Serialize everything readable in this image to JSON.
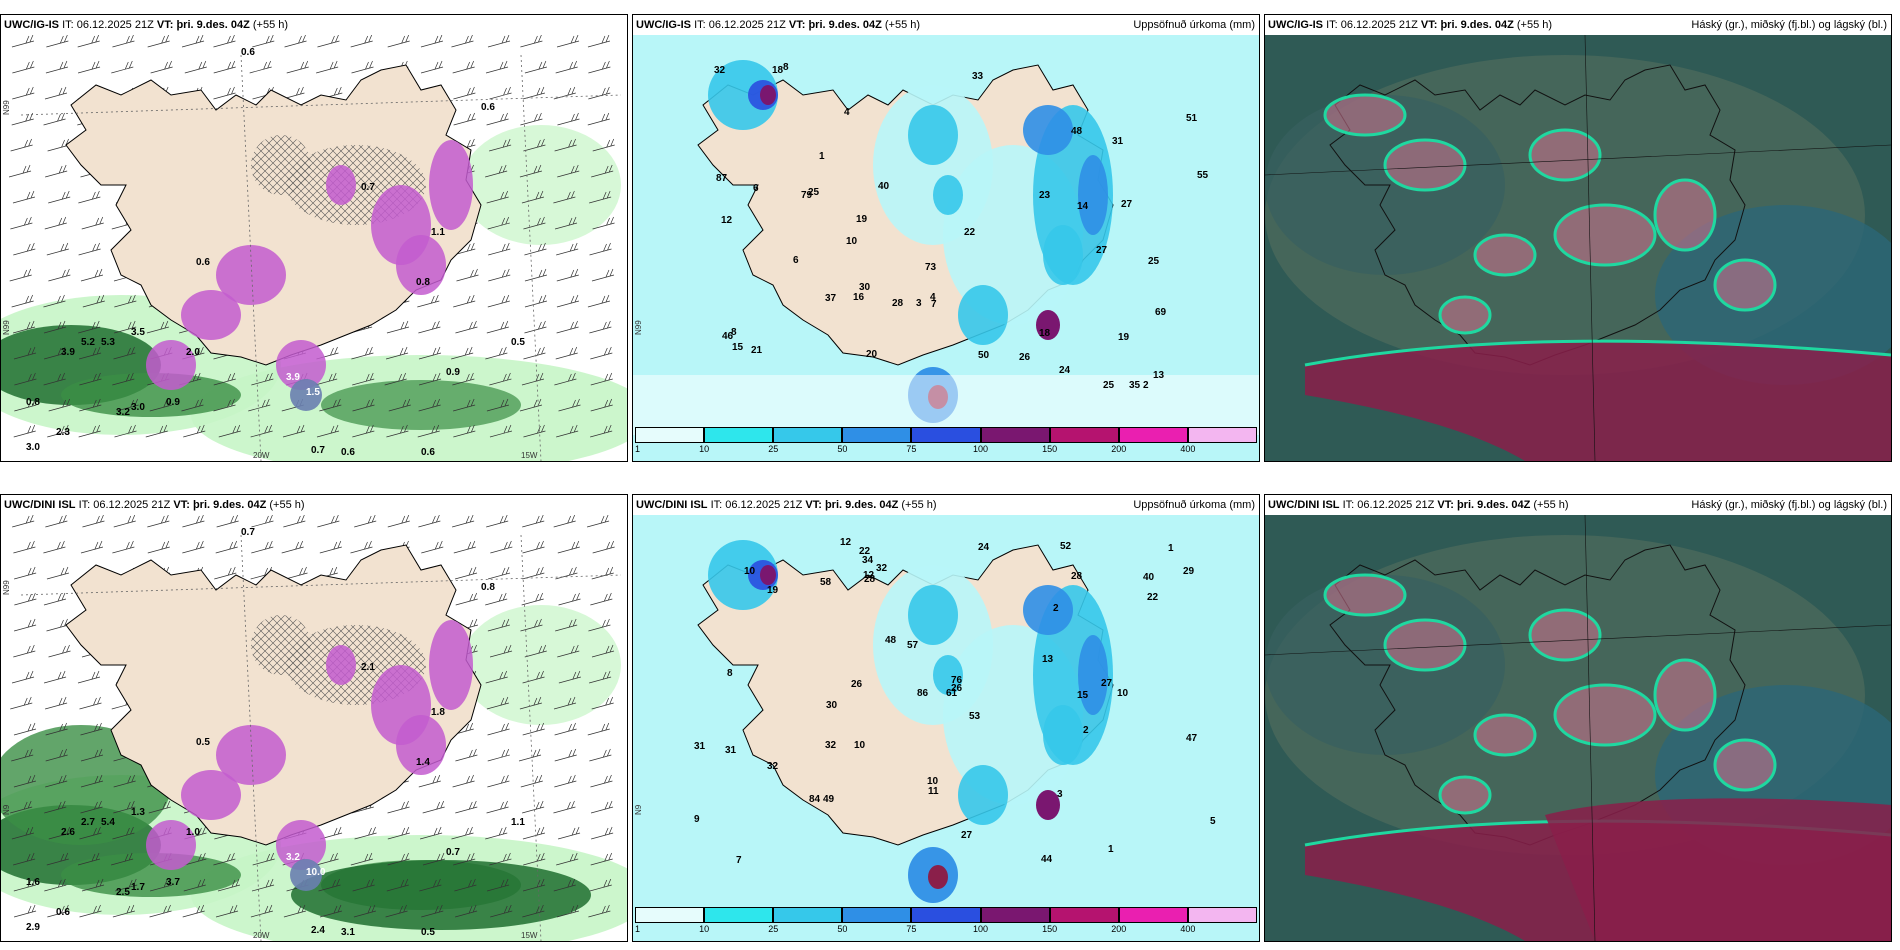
{
  "colors": {
    "land": "#f2e2d0",
    "sea_light": "#b8f6f8",
    "precip_green_light": "#c6f5c6",
    "precip_green_dark": "#1f6e2f",
    "precip_purple": "#c35ccf",
    "cloud_dark": "#2f5a55",
    "cloud_high": "#8a1f4a",
    "cloud_mid": "#1fd8a0"
  },
  "rows": [
    {
      "model": "UWC/IG-IS",
      "panels": [
        {
          "model": "UWC/IG-IS",
          "it_label": "IT:",
          "it": "06.12.2025 21Z",
          "vt_label": "VT:",
          "vt": "þri. 9.des. 04Z",
          "lead": "(+55 h)",
          "title": ""
        },
        {
          "model": "UWC/IG-IS",
          "it_label": "IT:",
          "it": "06.12.2025 21Z",
          "vt_label": "VT:",
          "vt": "þri. 9.des. 04Z",
          "lead": "(+55 h)",
          "title": "Uppsöfnuð úrkoma (mm)"
        },
        {
          "model": "UWC/IG-IS",
          "it_label": "IT:",
          "it": "06.12.2025 21Z",
          "vt_label": "VT:",
          "vt": "þri. 9.des. 04Z",
          "lead": "(+55 h)",
          "title": "Háský (gr.), miðský (fj.bl.) og lágský (bl.)"
        }
      ],
      "precip_labels": [
        "0.6",
        "0.6",
        "3.9",
        "5.2",
        "5.3",
        "3.5",
        "2.0",
        "0.8",
        "3.2",
        "3.0",
        "2.3",
        "3.0",
        "0.9",
        "1.5",
        "3.9",
        "0.7",
        "0.6",
        "0.6",
        "0.6",
        "0.5",
        "0.9",
        "1.1",
        "0.7",
        "0.8"
      ],
      "accum_labels": [
        "73",
        "79",
        "18",
        "27",
        "2",
        "4",
        "3",
        "10",
        "16",
        "14",
        "27",
        "33",
        "32",
        "25",
        "19",
        "18",
        "22",
        "55",
        "51",
        "40",
        "35",
        "25",
        "26",
        "37",
        "19",
        "23",
        "50",
        "8",
        "31",
        "46",
        "30",
        "28",
        "21",
        "69",
        "48",
        "87",
        "6",
        "8",
        "6",
        "20",
        "12",
        "13",
        "25",
        "24",
        "7",
        "15",
        "4",
        "1"
      ],
      "axis": [
        "20W",
        "15W",
        "N99",
        "N99"
      ]
    },
    {
      "model": "UWC/DINI ISL",
      "panels": [
        {
          "model": "UWC/DINI ISL",
          "it_label": "IT:",
          "it": "06.12.2025 21Z",
          "vt_label": "VT:",
          "vt": "þri. 9.des. 04Z",
          "lead": "(+55 h)",
          "title": ""
        },
        {
          "model": "UWC/DINI ISL",
          "it_label": "IT:",
          "it": "06.12.2025 21Z",
          "vt_label": "VT:",
          "vt": "þri. 9.des. 04Z",
          "lead": "(+55 h)",
          "title": "Uppsöfnuð úrkoma (mm)"
        },
        {
          "model": "UWC/DINI ISL",
          "it_label": "IT:",
          "it": "06.12.2025 21Z",
          "vt_label": "VT:",
          "vt": "þri. 9.des. 04Z",
          "lead": "(+55 h)",
          "title": "Háský (gr.), miðský (fj.bl.) og lágský (bl.)"
        }
      ],
      "precip_labels": [
        "0.7",
        "0.5",
        "2.6",
        "2.7",
        "5.4",
        "1.3",
        "1.0",
        "1.6",
        "2.5",
        "1.7",
        "0.6",
        "2.9",
        "3.7",
        "10.0",
        "3.2",
        "2.4",
        "3.1",
        "0.5",
        "0.8",
        "1.1",
        "0.7",
        "1.8",
        "2.1",
        "1.4"
      ],
      "accum_labels": [
        "61",
        "31",
        "10",
        "26",
        "44",
        "22",
        "9",
        "5",
        "2",
        "1",
        "10",
        "31",
        "48",
        "47",
        "32",
        "52",
        "58",
        "34",
        "30",
        "53",
        "29",
        "32",
        "19",
        "28",
        "12",
        "57",
        "10",
        "27",
        "13",
        "15",
        "49",
        "32",
        "86",
        "40",
        "76",
        "84",
        "2",
        "28",
        "11",
        "8",
        "12",
        "10",
        "22",
        "26",
        "24",
        "27",
        "3",
        "7",
        "1"
      ],
      "axis": [
        "20W",
        "15W",
        "N99",
        "N9"
      ]
    }
  ],
  "colorbar": {
    "ticks": [
      "1",
      "10",
      "25",
      "50",
      "75",
      "100",
      "150",
      "200",
      "400"
    ],
    "colors": [
      "#e6fcfc",
      "#2ee6ec",
      "#36c8ea",
      "#2f8fe6",
      "#2a4fe0",
      "#7a1770",
      "#b5136f",
      "#ea1fb0",
      "#f3b6f0"
    ]
  }
}
